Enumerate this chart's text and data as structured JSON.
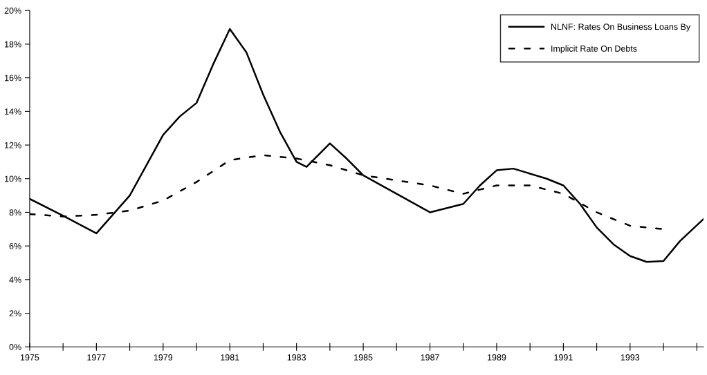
{
  "chart_data": {
    "type": "line",
    "xlim": [
      1975,
      1995.2
    ],
    "ylim": [
      0,
      20
    ],
    "xticks": [
      1975,
      {
        "value": 1976,
        "label": null
      },
      1977,
      {
        "value": 1978,
        "label": null
      },
      1979,
      {
        "value": 1980,
        "label": null
      },
      1981,
      {
        "value": 1982,
        "label": null
      },
      1983,
      {
        "value": 1984,
        "label": null
      },
      1985,
      {
        "value": 1986,
        "label": null
      },
      1987,
      {
        "value": 1988,
        "label": null
      },
      1989,
      {
        "value": 1990,
        "label": null
      },
      1991,
      {
        "value": 1992,
        "label": null
      },
      1993,
      {
        "value": 1994,
        "label": null
      },
      {
        "value": 1995,
        "label": null
      }
    ],
    "yticks": [
      {
        "value": 0,
        "label": "0%"
      },
      {
        "value": 2,
        "label": "2%"
      },
      {
        "value": 4,
        "label": "4%"
      },
      {
        "value": 6,
        "label": "6%"
      },
      {
        "value": 8,
        "label": "8%"
      },
      {
        "value": 10,
        "label": "10%"
      },
      {
        "value": 12,
        "label": "12%"
      },
      {
        "value": 14,
        "label": "14%"
      },
      {
        "value": 16,
        "label": "16%"
      },
      {
        "value": 18,
        "label": "18%"
      },
      {
        "value": 20,
        "label": "20%"
      }
    ],
    "grid": false,
    "legend": "top right",
    "marker": "none",
    "series": [
      {
        "name": "NLNF: Rates On Business Loans By",
        "color": "#000000",
        "line_style": "solid",
        "x": [
          1975,
          1976,
          1977,
          1978,
          1979,
          1979.5,
          1980,
          1980.5,
          1981,
          1981.5,
          1982,
          1982.5,
          1983,
          1983.3,
          1984,
          1984.5,
          1985,
          1986,
          1987,
          1988,
          1988.5,
          1989,
          1989.5,
          1990,
          1990.5,
          1991,
          1991.5,
          1992,
          1992.5,
          1993,
          1993.5,
          1994,
          1994.5,
          1995.2
        ],
        "values": [
          8.8,
          7.8,
          6.75,
          9.0,
          12.6,
          13.7,
          14.5,
          16.8,
          18.9,
          17.5,
          15.0,
          12.8,
          11.0,
          10.7,
          12.1,
          11.2,
          10.2,
          9.1,
          8.0,
          8.5,
          9.6,
          10.5,
          10.6,
          10.3,
          10.0,
          9.6,
          8.5,
          7.1,
          6.1,
          5.4,
          5.05,
          5.1,
          6.3,
          7.6
        ]
      },
      {
        "name": "Implicit Rate On Debts",
        "color": "#000000",
        "line_style": "dashed",
        "x": [
          1975,
          1976,
          1977,
          1978,
          1979,
          1980,
          1981,
          1982,
          1983,
          1984,
          1985,
          1986,
          1987,
          1988,
          1989,
          1990,
          1991,
          1992,
          1993,
          1994
        ],
        "values": [
          7.9,
          7.75,
          7.85,
          8.1,
          8.7,
          9.8,
          11.1,
          11.4,
          11.2,
          10.8,
          10.2,
          9.9,
          9.6,
          9.1,
          9.6,
          9.6,
          9.1,
          8.0,
          7.2,
          7.0
        ]
      }
    ]
  }
}
